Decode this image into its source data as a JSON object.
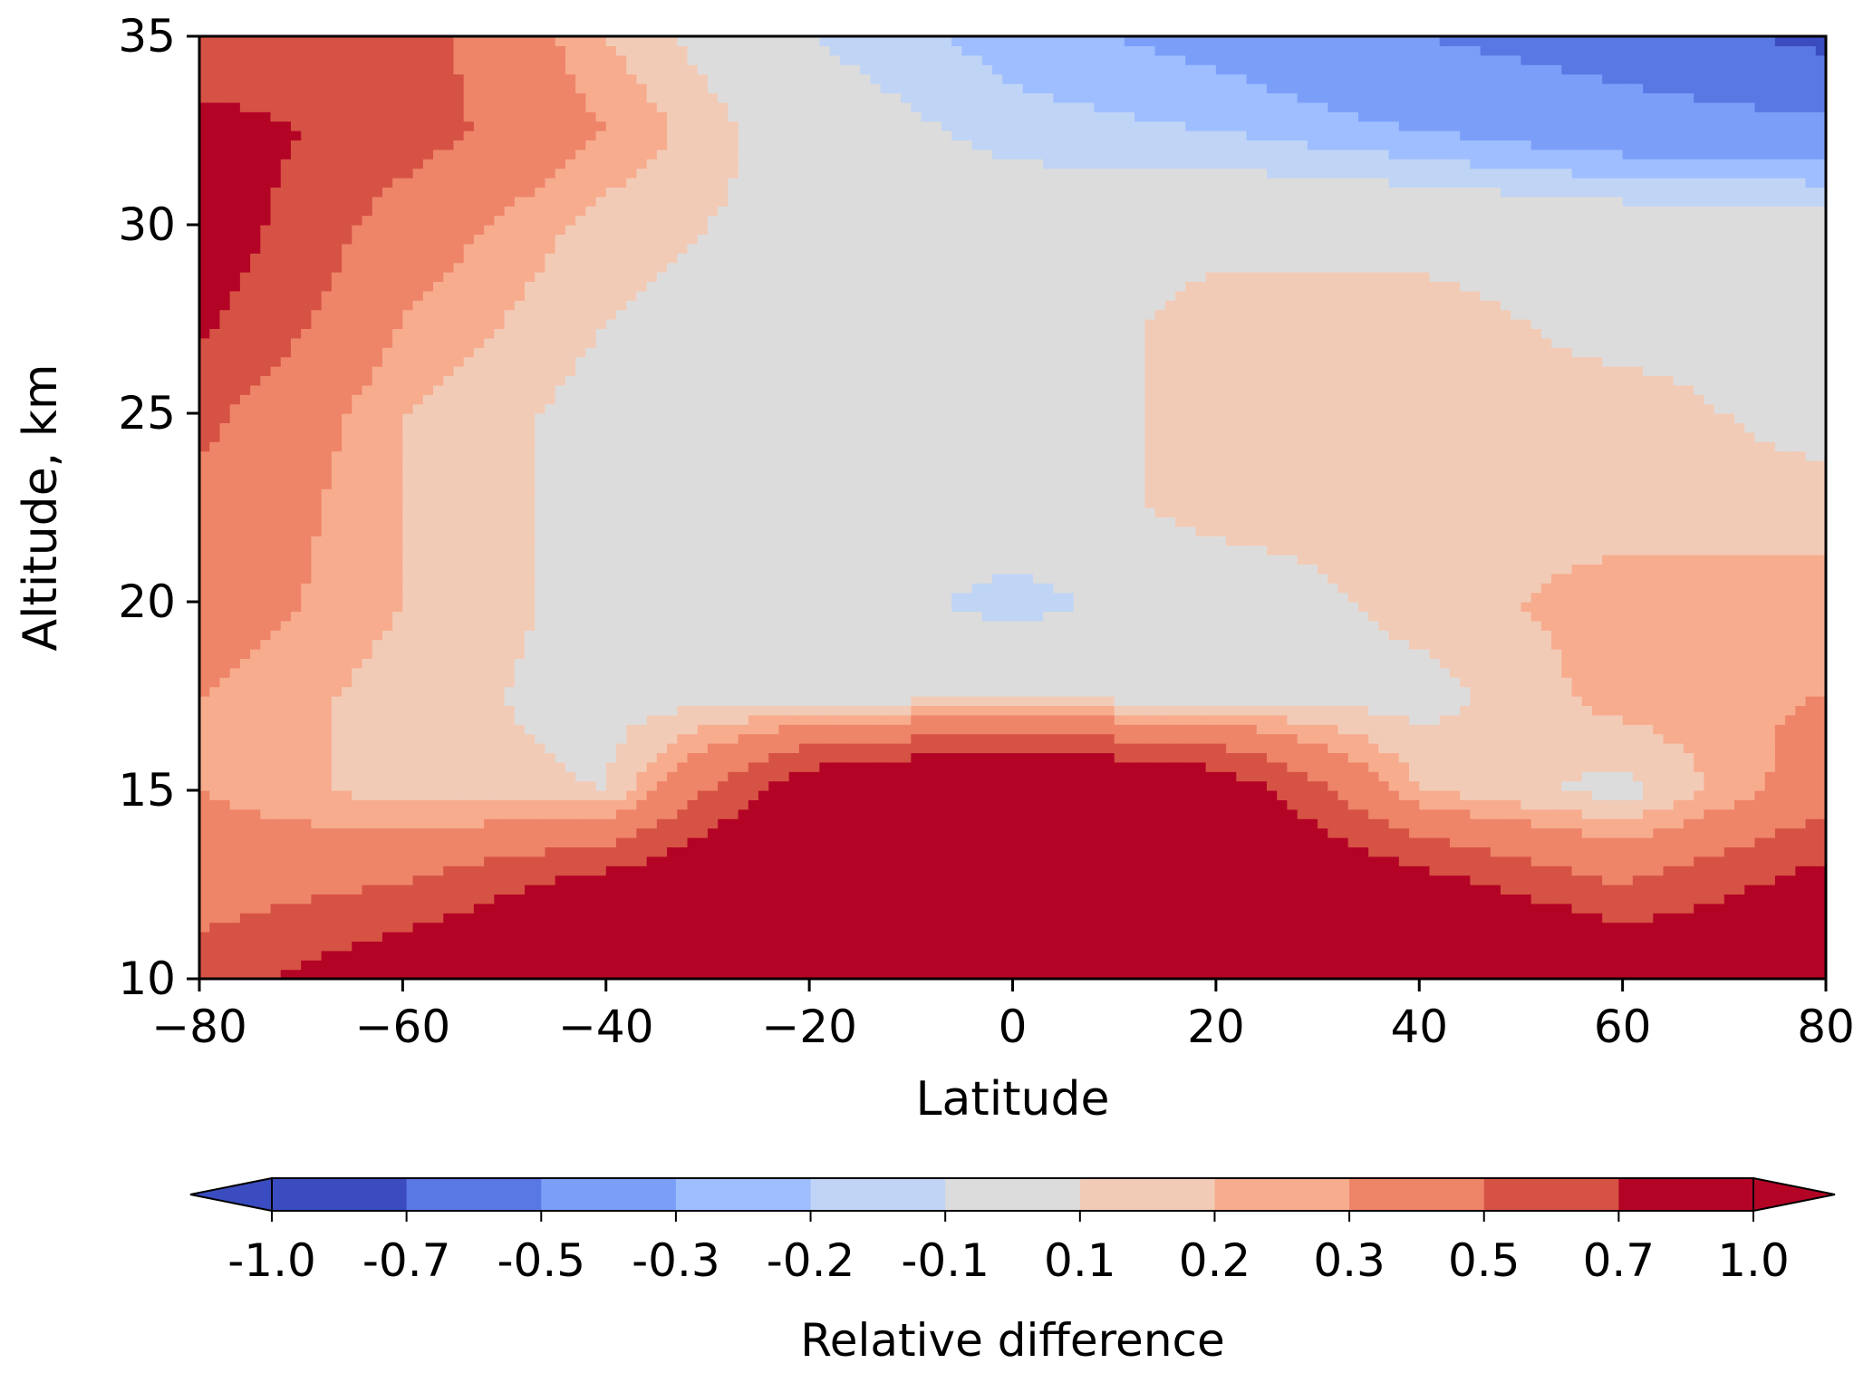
{
  "chart_data": {
    "type": "heatmap",
    "subtype": "filled-contour",
    "title": "",
    "xlabel": "Latitude",
    "ylabel": "Altitude, km",
    "xlim": [
      -80,
      80
    ],
    "ylim": [
      10,
      35
    ],
    "xticks": [
      -80,
      -60,
      -40,
      -20,
      0,
      20,
      40,
      60,
      80
    ],
    "xtick_labels": [
      "−80",
      "−60",
      "−40",
      "−20",
      "0",
      "20",
      "40",
      "60",
      "80"
    ],
    "yticks": [
      10,
      15,
      20,
      25,
      30,
      35
    ],
    "ytick_labels": [
      "10",
      "15",
      "20",
      "25",
      "30",
      "35"
    ],
    "grid": false,
    "x": [
      -80,
      -60,
      -40,
      -20,
      0,
      20,
      40,
      60,
      80
    ],
    "y": [
      10,
      12.5,
      15,
      17.5,
      20,
      22.5,
      25,
      27.5,
      30,
      32.5,
      35
    ],
    "z": [
      [
        0.6,
        0.9,
        1.2,
        1.2,
        1.2,
        1.2,
        1.2,
        1.0,
        0.9
      ],
      [
        0.4,
        0.5,
        0.8,
        1.1,
        1.2,
        1.1,
        0.8,
        0.5,
        0.8
      ],
      [
        0.3,
        0.15,
        0.1,
        0.9,
        1.2,
        0.9,
        0.2,
        0.05,
        0.4
      ],
      [
        0.3,
        0.15,
        0.05,
        0.05,
        0.05,
        0.05,
        0.05,
        0.25,
        0.3
      ],
      [
        0.4,
        0.2,
        0.05,
        0.0,
        -0.15,
        0.0,
        0.15,
        0.25,
        0.25
      ],
      [
        0.45,
        0.2,
        0.05,
        0.0,
        0.0,
        0.15,
        0.15,
        0.15,
        0.15
      ],
      [
        0.55,
        0.2,
        0.05,
        0.0,
        0.0,
        0.15,
        0.15,
        0.15,
        0.05
      ],
      [
        0.75,
        0.3,
        0.1,
        0.0,
        0.0,
        0.15,
        0.15,
        0.05,
        0.05
      ],
      [
        0.85,
        0.4,
        0.15,
        0.05,
        0.0,
        0.05,
        0.05,
        0.0,
        0.0
      ],
      [
        0.8,
        0.6,
        0.3,
        0.0,
        -0.15,
        -0.2,
        -0.3,
        -0.4,
        -0.45
      ],
      [
        0.5,
        0.6,
        0.2,
        -0.1,
        -0.25,
        -0.35,
        -0.5,
        -0.6,
        -0.75
      ]
    ],
    "colorbar": {
      "label": "Relative difference",
      "levels": [
        -1.0,
        -0.7,
        -0.5,
        -0.3,
        -0.2,
        -0.1,
        0.1,
        0.2,
        0.3,
        0.5,
        0.7,
        1.0
      ],
      "tick_labels": [
        "-1.0",
        "-0.7",
        "-0.5",
        "-0.3",
        "-0.2",
        "-0.1",
        "0.1",
        "0.2",
        "0.3",
        "0.5",
        "0.7",
        "1.0"
      ],
      "colors": [
        "#3b4cc0",
        "#5a78e4",
        "#7b9ff9",
        "#9ebeff",
        "#c0d4f5",
        "#dddcdc",
        "#f2cbb7",
        "#f7ac8e",
        "#ee8468",
        "#d65244",
        "#b40426"
      ],
      "under_color": "#3b4cc0",
      "over_color": "#b40426",
      "extend": "both",
      "orientation": "horizontal",
      "position": "bottom"
    }
  }
}
